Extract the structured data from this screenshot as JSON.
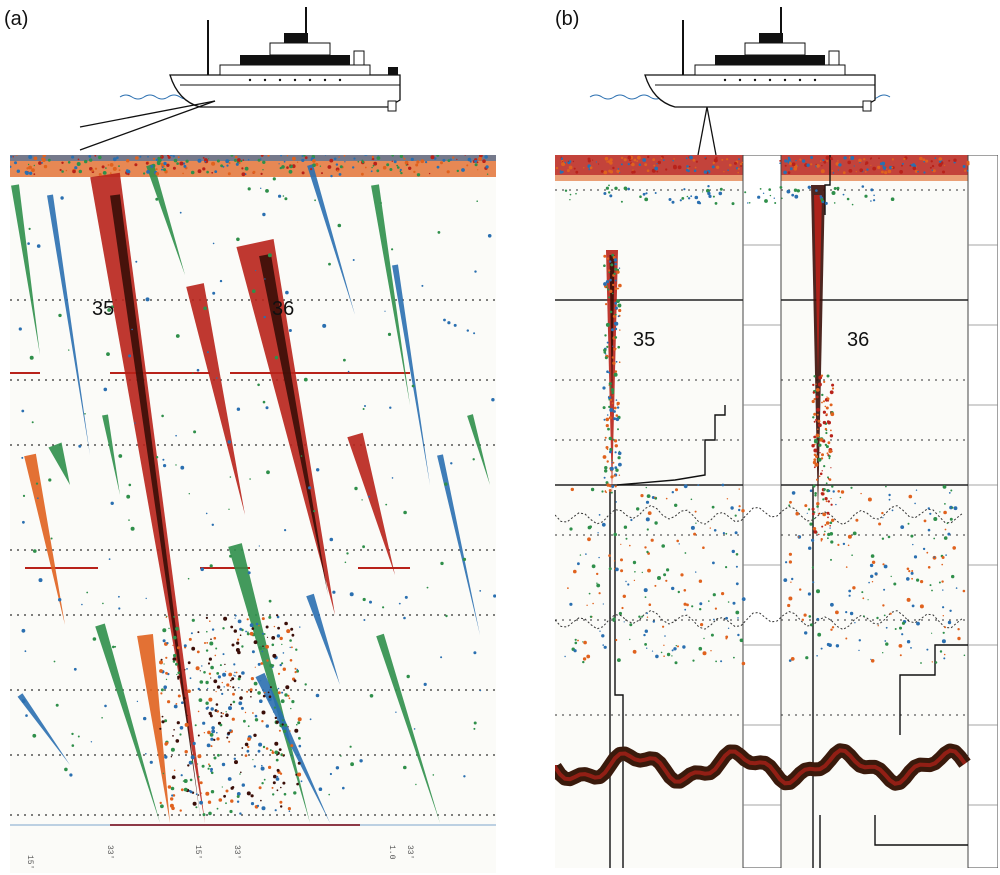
{
  "panels": [
    {
      "id": "a",
      "label": "(a)",
      "school_labels": [
        "35",
        "36"
      ]
    },
    {
      "id": "b",
      "label": "(b)",
      "school_labels": [
        "35",
        "36"
      ]
    }
  ],
  "colors": {
    "strong": "#b8221a",
    "dark": "#3a0e08",
    "medium": "#e0621e",
    "weak_green": "#2f8f4a",
    "weak_blue": "#2a6fb0",
    "grid": "#333333",
    "bottom": "#4a2612"
  },
  "icons": [
    "ship-icon",
    "sonar-beam-icon"
  ]
}
